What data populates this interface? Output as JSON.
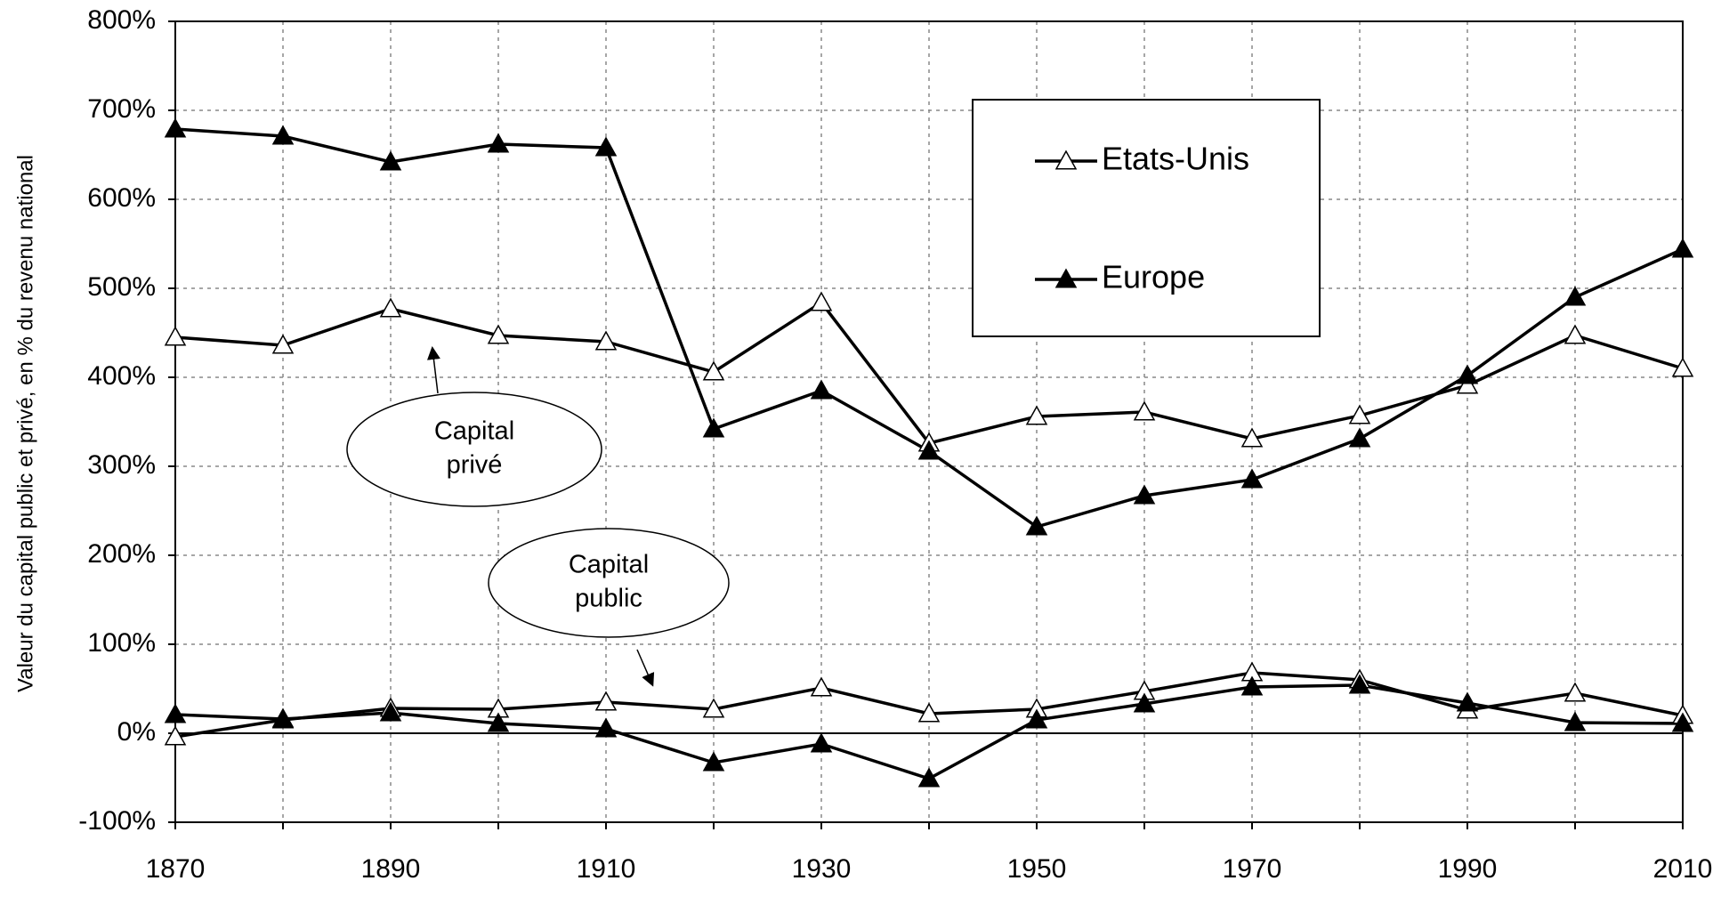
{
  "chart_data": {
    "type": "line",
    "y_label": "Valeur du capital public et privé, en % du revenu national",
    "x": [
      1870,
      1880,
      1890,
      1900,
      1910,
      1920,
      1930,
      1940,
      1950,
      1960,
      1970,
      1980,
      1990,
      2000,
      2010
    ],
    "series": [
      {
        "name": "Etats-Unis",
        "color": "#000000",
        "marker": "open",
        "values": [
          445,
          436,
          477,
          447,
          440,
          406,
          484,
          326,
          356,
          361,
          331,
          357,
          391,
          447,
          410
        ]
      },
      {
        "name": "Europe",
        "color": "#000000",
        "marker": "filled",
        "values": [
          679,
          671,
          642,
          662,
          658,
          342,
          385,
          317,
          232,
          267,
          285,
          331,
          402,
          490,
          544
        ]
      },
      {
        "color": "#000000",
        "marker": "open",
        "values": [
          -4,
          15,
          28,
          27,
          35,
          27,
          51,
          22,
          27,
          47,
          68,
          60,
          26,
          45,
          20
        ]
      },
      {
        "color": "#000000",
        "marker": "filled",
        "values": [
          21,
          16,
          23,
          11,
          5,
          -33,
          -12,
          -51,
          15,
          33,
          52,
          54,
          34,
          12,
          11
        ]
      }
    ],
    "annotations": [
      [
        "Capital",
        "privé"
      ],
      [
        "Capital",
        "public"
      ]
    ],
    "xlim": [
      1870,
      2010
    ],
    "xticks": [
      1870,
      1890,
      1910,
      1930,
      1950,
      1970,
      1990,
      2010
    ],
    "xminor_ticks": [
      1880,
      1900,
      1920,
      1940,
      1960,
      1980,
      2000
    ],
    "ylim": [
      -100,
      800
    ],
    "yticks": [
      {
        "value": -100,
        "label": "-100%"
      },
      {
        "value": 0,
        "label": "0%"
      },
      {
        "value": 100,
        "label": "100%"
      },
      {
        "value": 200,
        "label": "200%"
      },
      {
        "value": 300,
        "label": "300%"
      },
      {
        "value": 400,
        "label": "400%"
      },
      {
        "value": 500,
        "label": "500%"
      },
      {
        "value": 600,
        "label": "600%"
      },
      {
        "value": 700,
        "label": "700%"
      },
      {
        "value": 800,
        "label": "800%"
      }
    ],
    "grid": true
  }
}
